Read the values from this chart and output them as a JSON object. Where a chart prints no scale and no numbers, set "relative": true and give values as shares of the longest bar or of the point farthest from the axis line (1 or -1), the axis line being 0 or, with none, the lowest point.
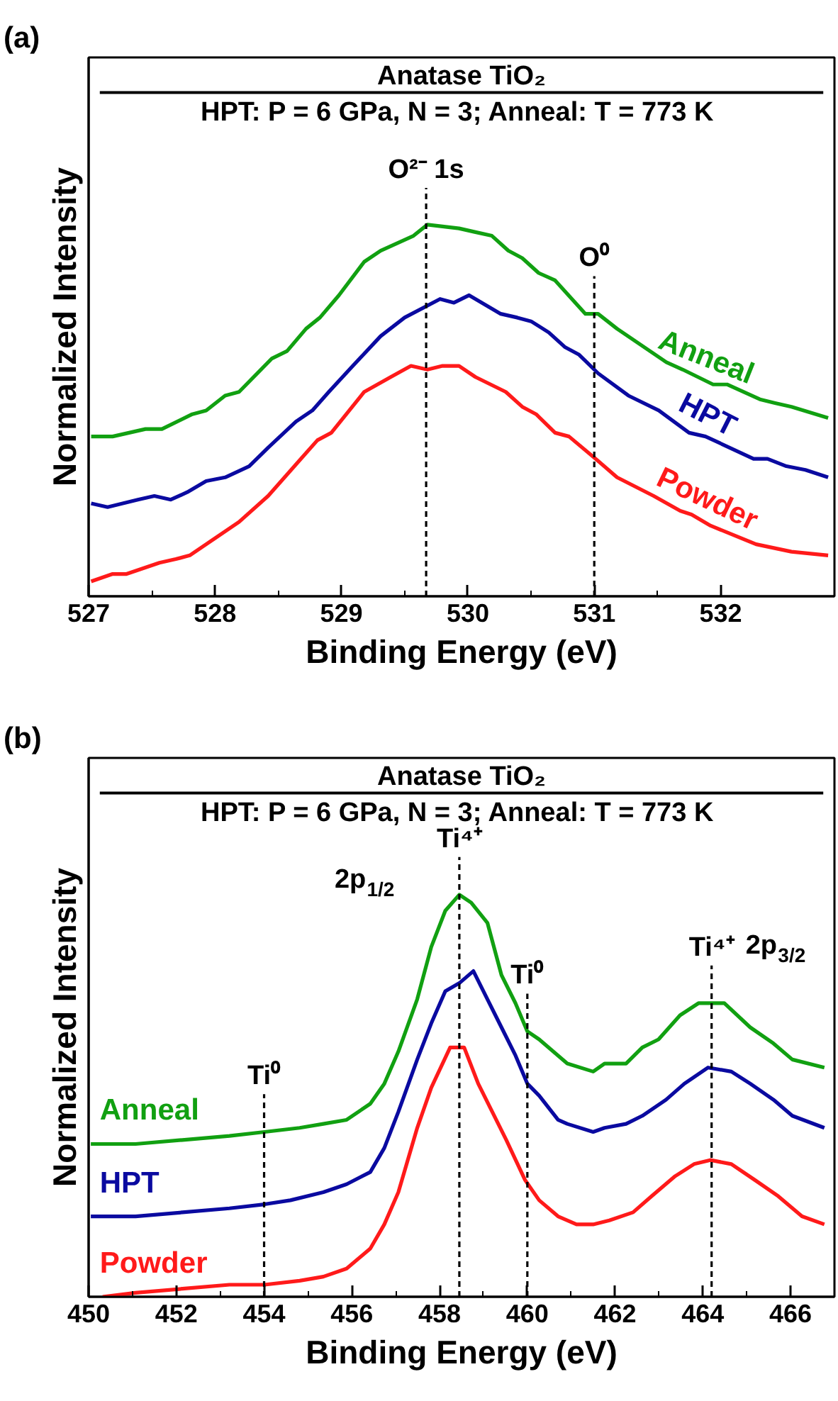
{
  "chart_data": [
    {
      "type": "line",
      "relative": true,
      "title": "Anatase TiO₂",
      "subtitle": "HPT: P = 6 GPa, N = 3;  Anneal: T = 773 K",
      "xlabel": "Binding Energy (eV)",
      "ylabel": "Normalized Intensity",
      "xlim": [
        527,
        532.9
      ],
      "xticks": [
        527,
        528,
        529,
        530,
        531,
        532
      ],
      "grid": false,
      "line_style": "solid",
      "annotations": [
        "(a)"
      ],
      "ref_lines": [
        {
          "axis": "x",
          "value": 529.67,
          "label": "O²⁻ 1s",
          "line_style": "dashed",
          "color": "#000000"
        },
        {
          "axis": "x",
          "value": 531.0,
          "label": "O⁰",
          "line_style": "dashed",
          "color": "#000000"
        }
      ],
      "series": [
        {
          "name": "Anneal",
          "color": "#11a011",
          "x": [
            527.02,
            527.19,
            527.45,
            527.58,
            527.82,
            527.93,
            528.08,
            528.19,
            528.45,
            528.57,
            528.72,
            528.83,
            528.98,
            529.18,
            529.31,
            529.57,
            529.68,
            529.93,
            530.06,
            530.19,
            530.32,
            530.43,
            530.56,
            530.69,
            530.93,
            531.03,
            531.18,
            531.57,
            531.7,
            531.94,
            532.05,
            532.31,
            532.43,
            532.56,
            532.85
          ],
          "values": [
            0.43,
            0.43,
            0.45,
            0.45,
            0.49,
            0.5,
            0.54,
            0.55,
            0.64,
            0.66,
            0.72,
            0.75,
            0.81,
            0.9,
            0.93,
            0.97,
            1.0,
            0.99,
            0.98,
            0.97,
            0.93,
            0.91,
            0.87,
            0.85,
            0.76,
            0.76,
            0.72,
            0.63,
            0.61,
            0.57,
            0.57,
            0.53,
            0.52,
            0.51,
            0.48
          ]
        },
        {
          "name": "HPT",
          "color": "#0a0aa0",
          "x": [
            527.02,
            527.15,
            527.39,
            527.52,
            527.65,
            527.78,
            527.93,
            528.08,
            528.27,
            528.42,
            528.64,
            528.77,
            528.9,
            529.09,
            529.31,
            529.5,
            529.78,
            529.89,
            530.01,
            530.26,
            530.39,
            530.5,
            530.64,
            530.77,
            530.88,
            531.03,
            531.27,
            531.51,
            531.75,
            531.88,
            532.26,
            532.37,
            532.52,
            532.67,
            532.85
          ],
          "values": [
            0.25,
            0.24,
            0.26,
            0.27,
            0.26,
            0.28,
            0.31,
            0.32,
            0.35,
            0.4,
            0.47,
            0.5,
            0.55,
            0.62,
            0.7,
            0.75,
            0.8,
            0.79,
            0.81,
            0.76,
            0.75,
            0.74,
            0.71,
            0.67,
            0.65,
            0.6,
            0.54,
            0.5,
            0.44,
            0.43,
            0.37,
            0.37,
            0.35,
            0.34,
            0.32
          ]
        },
        {
          "name": "Powder",
          "color": "#ff1a1a",
          "x": [
            527.02,
            527.19,
            527.3,
            527.56,
            527.69,
            527.8,
            527.93,
            528.19,
            528.42,
            528.68,
            528.81,
            528.92,
            529.18,
            529.39,
            529.55,
            529.68,
            529.8,
            529.93,
            530.06,
            530.3,
            530.43,
            530.54,
            530.69,
            530.8,
            531.01,
            531.18,
            531.47,
            531.68,
            531.77,
            531.92,
            532.28,
            532.56,
            532.85
          ],
          "values": [
            0.04,
            0.06,
            0.06,
            0.09,
            0.1,
            0.11,
            0.14,
            0.2,
            0.27,
            0.37,
            0.42,
            0.44,
            0.55,
            0.59,
            0.62,
            0.61,
            0.62,
            0.62,
            0.59,
            0.55,
            0.51,
            0.49,
            0.44,
            0.43,
            0.37,
            0.32,
            0.27,
            0.23,
            0.22,
            0.19,
            0.14,
            0.12,
            0.11
          ]
        }
      ]
    },
    {
      "type": "line",
      "relative": true,
      "title": "Anatase TiO₂",
      "subtitle": "HPT: P = 6 GPa, N = 3;  Anneal: T = 773 K",
      "xlabel": "Binding Energy (eV)",
      "ylabel": "Normalized Intensity",
      "xlim": [
        450,
        467
      ],
      "xticks": [
        450,
        452,
        454,
        456,
        458,
        460,
        462,
        464,
        466
      ],
      "grid": false,
      "line_style": "solid",
      "annotations": [
        "(b)",
        "2p$_{1/2}$",
        "2p$_{3/2}$"
      ],
      "ref_lines": [
        {
          "axis": "x",
          "value": 454,
          "label": "Ti⁰",
          "line_style": "dashed",
          "color": "#000000"
        },
        {
          "axis": "x",
          "value": 458.45,
          "label": "Ti⁴⁺",
          "line_style": "dashed",
          "color": "#000000"
        },
        {
          "axis": "x",
          "value": 460,
          "label": "Ti⁰",
          "line_style": "dashed",
          "color": "#000000"
        },
        {
          "axis": "x",
          "value": 464.2,
          "label": "Ti⁴⁺",
          "line_style": "dashed",
          "color": "#000000"
        }
      ],
      "series": [
        {
          "name": "Anneal",
          "color": "#11a011",
          "x": [
            450.05,
            451.07,
            452.14,
            453.21,
            454.01,
            454.81,
            455.35,
            455.88,
            456.42,
            456.74,
            457.06,
            457.49,
            457.81,
            458.13,
            458.45,
            458.72,
            459.09,
            459.41,
            459.73,
            460.0,
            460.27,
            460.59,
            460.91,
            461.5,
            461.76,
            462.25,
            462.62,
            462.99,
            463.48,
            463.9,
            464.49,
            465.08,
            465.61,
            466.04,
            466.77
          ],
          "values": [
            0.38,
            0.38,
            0.39,
            0.4,
            0.41,
            0.42,
            0.43,
            0.44,
            0.48,
            0.53,
            0.61,
            0.74,
            0.87,
            0.96,
            1.0,
            0.98,
            0.93,
            0.8,
            0.73,
            0.66,
            0.64,
            0.61,
            0.58,
            0.56,
            0.58,
            0.58,
            0.62,
            0.64,
            0.7,
            0.73,
            0.73,
            0.67,
            0.63,
            0.59,
            0.57
          ]
        },
        {
          "name": "HPT",
          "color": "#0a0aa0",
          "x": [
            450.05,
            451.07,
            452.14,
            453.21,
            454.01,
            454.6,
            455.35,
            455.88,
            456.42,
            456.74,
            457.06,
            457.49,
            457.81,
            458.13,
            458.45,
            458.77,
            459.09,
            459.41,
            459.73,
            460.0,
            460.27,
            460.7,
            460.91,
            461.5,
            461.76,
            462.25,
            462.62,
            463.16,
            463.58,
            464.12,
            464.65,
            465.08,
            465.61,
            466.04,
            466.77
          ],
          "values": [
            0.2,
            0.2,
            0.21,
            0.22,
            0.23,
            0.24,
            0.26,
            0.28,
            0.31,
            0.37,
            0.46,
            0.59,
            0.68,
            0.76,
            0.78,
            0.81,
            0.74,
            0.67,
            0.6,
            0.53,
            0.5,
            0.44,
            0.43,
            0.41,
            0.42,
            0.43,
            0.45,
            0.49,
            0.53,
            0.57,
            0.56,
            0.53,
            0.49,
            0.45,
            0.42
          ]
        },
        {
          "name": "Powder",
          "color": "#ff1a1a",
          "x": [
            450.32,
            451.07,
            452.14,
            453.21,
            454.01,
            454.81,
            455.35,
            455.88,
            456.42,
            456.74,
            457.06,
            457.49,
            457.81,
            458.24,
            458.56,
            458.88,
            459.2,
            459.52,
            459.95,
            460.27,
            460.7,
            461.12,
            461.5,
            461.87,
            462.41,
            462.83,
            463.37,
            463.8,
            464.17,
            464.65,
            465.19,
            465.72,
            466.26,
            466.77
          ],
          "values": [
            0.0,
            0.01,
            0.02,
            0.03,
            0.03,
            0.04,
            0.05,
            0.07,
            0.12,
            0.18,
            0.26,
            0.42,
            0.52,
            0.62,
            0.62,
            0.53,
            0.46,
            0.39,
            0.29,
            0.24,
            0.2,
            0.18,
            0.18,
            0.19,
            0.21,
            0.25,
            0.3,
            0.33,
            0.34,
            0.33,
            0.29,
            0.25,
            0.2,
            0.18
          ]
        }
      ]
    }
  ]
}
